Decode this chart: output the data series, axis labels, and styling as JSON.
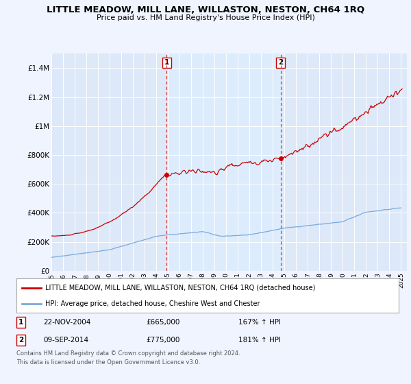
{
  "title": "LITTLE MEADOW, MILL LANE, WILLASTON, NESTON, CH64 1RQ",
  "subtitle": "Price paid vs. HM Land Registry's House Price Index (HPI)",
  "title_fontsize": 9.5,
  "subtitle_fontsize": 8,
  "ylim": [
    0,
    1500000
  ],
  "yticks": [
    0,
    200000,
    400000,
    600000,
    800000,
    1000000,
    1200000,
    1400000
  ],
  "ytick_labels": [
    "£0",
    "£200K",
    "£400K",
    "£600K",
    "£800K",
    "£1M",
    "£1.2M",
    "£1.4M"
  ],
  "background_color": "#f0f4ff",
  "plot_bg_color": "#dde8f8",
  "grid_color": "#ffffff",
  "red_line_color": "#cc0000",
  "blue_line_color": "#7aaadd",
  "shade_color": "#ddeeff",
  "marker1_x": 2004.9,
  "marker1_y": 665000,
  "marker2_x": 2014.67,
  "marker2_y": 775000,
  "sale1_label": "1",
  "sale2_label": "2",
  "sale1_date": "22-NOV-2004",
  "sale1_price": "£665,000",
  "sale1_hpi": "167% ↑ HPI",
  "sale2_date": "09-SEP-2014",
  "sale2_price": "£775,000",
  "sale2_hpi": "181% ↑ HPI",
  "legend1_text": "LITTLE MEADOW, MILL LANE, WILLASTON, NESTON, CH64 1RQ (detached house)",
  "legend2_text": "HPI: Average price, detached house, Cheshire West and Chester",
  "footer1": "Contains HM Land Registry data © Crown copyright and database right 2024.",
  "footer2": "This data is licensed under the Open Government Licence v3.0.",
  "vline1_x": 2004.9,
  "vline2_x": 2014.67,
  "vline_color": "#dd2222",
  "xmin": 1995,
  "xmax": 2025.5
}
